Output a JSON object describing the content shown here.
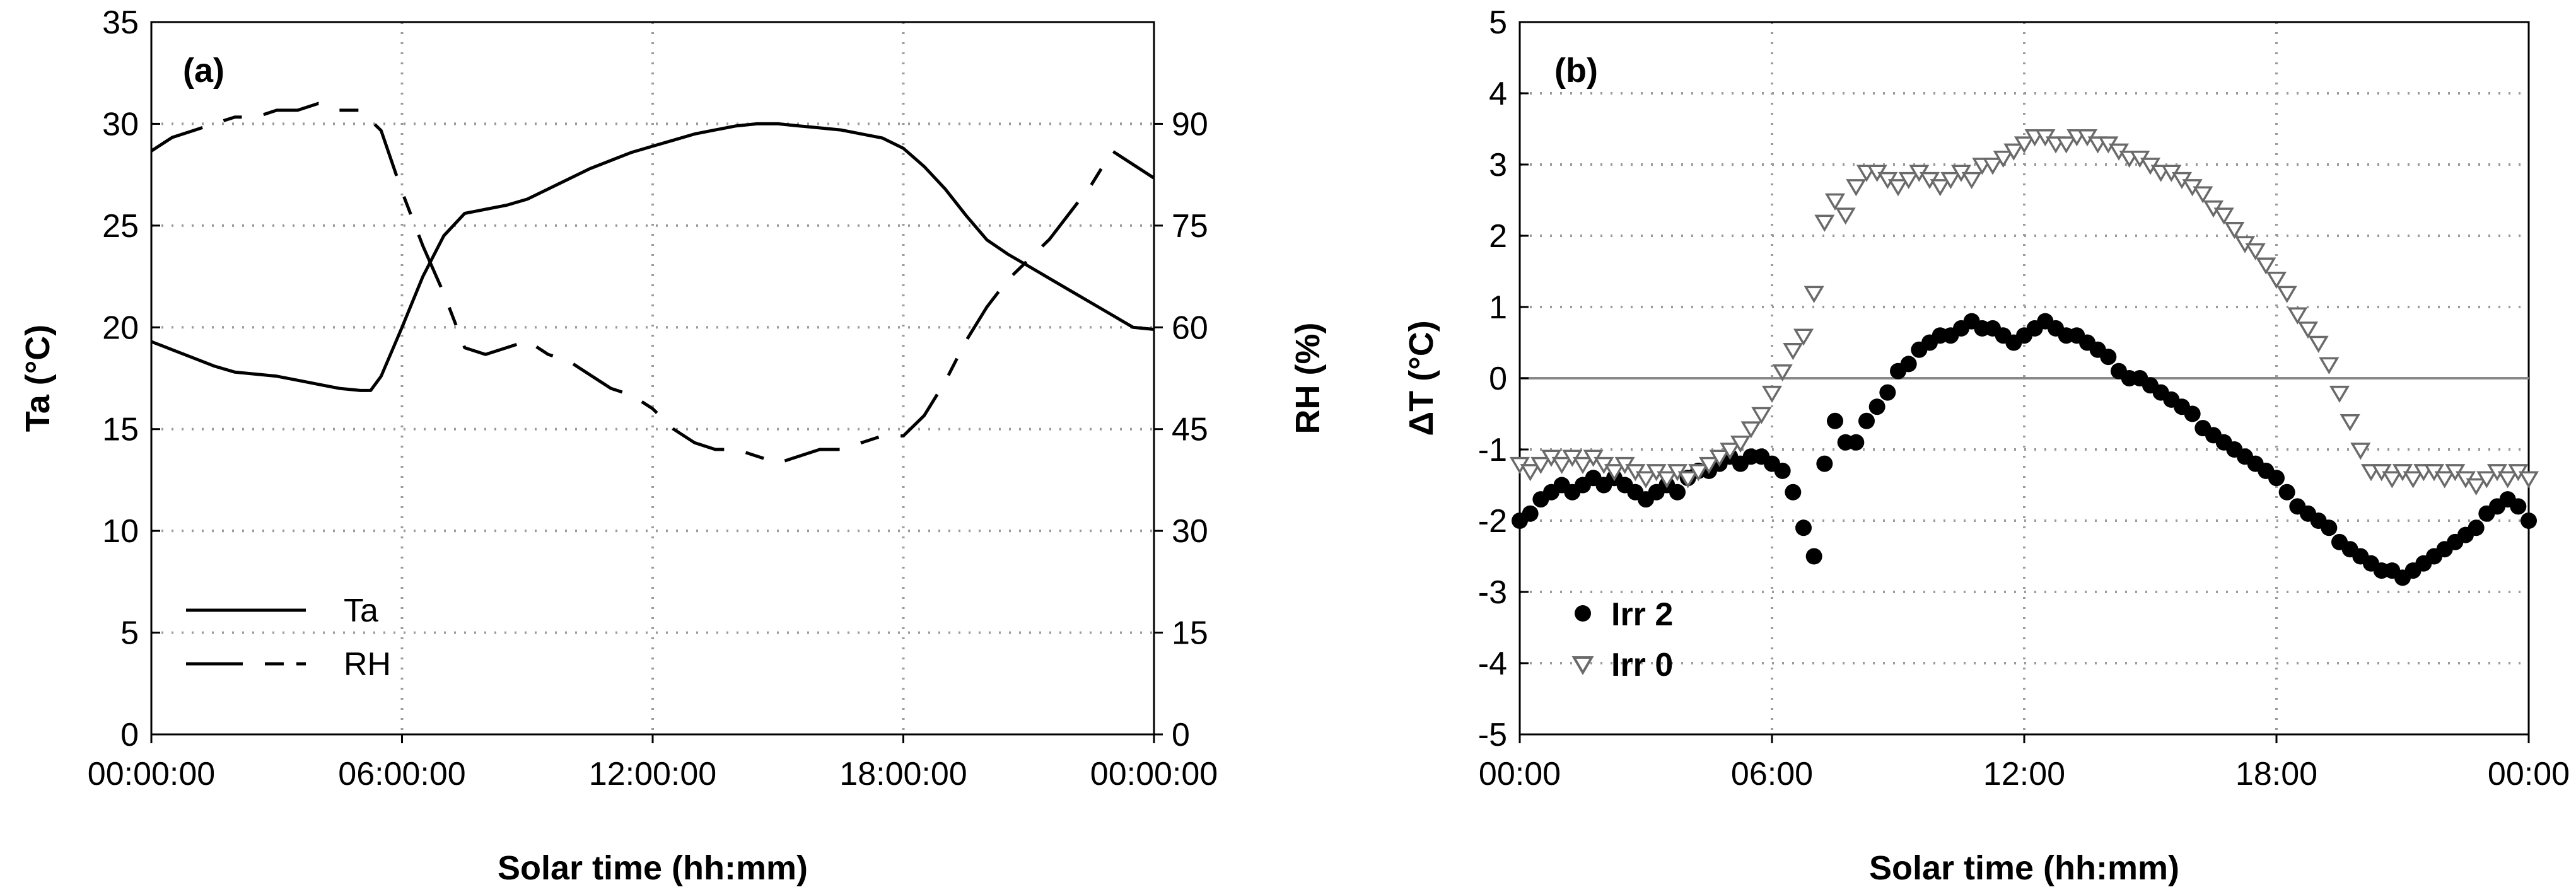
{
  "chart_data": [
    {
      "type": "line",
      "panel_label": "(a)",
      "xlabel": "Solar time (hh:mm)",
      "ylabel": "Ta (°C)",
      "ylabel_right": "RH (%)",
      "xlim": [
        0,
        24
      ],
      "ylim": [
        0,
        35
      ],
      "ylim_right": [
        0,
        105
      ],
      "x_ticks": [
        0,
        6,
        12,
        18,
        24
      ],
      "x_tick_labels": [
        "00:00:00",
        "06:00:00",
        "12:00:00",
        "18:00:00",
        "00:00:00"
      ],
      "y_ticks": [
        0,
        5,
        10,
        15,
        20,
        25,
        30,
        35
      ],
      "y_tick_labels": [
        "0",
        "5",
        "10",
        "15",
        "20",
        "25",
        "30",
        "35"
      ],
      "y_ticks_right": [
        0,
        15,
        30,
        45,
        60,
        75,
        90
      ],
      "y_tick_labels_right": [
        "0",
        "15",
        "30",
        "45",
        "60",
        "75",
        "90"
      ],
      "grid": true,
      "legend_position": "bottom-left",
      "series": [
        {
          "name": "Ta",
          "axis": "left",
          "style": "solid",
          "x": [
            0,
            0.5,
            1,
            1.5,
            2,
            2.5,
            3,
            3.5,
            4,
            4.5,
            5,
            5.25,
            5.5,
            6,
            6.5,
            7,
            7.5,
            8,
            8.5,
            9,
            9.5,
            10,
            10.5,
            11,
            11.5,
            12,
            12.5,
            13,
            13.5,
            14,
            14.5,
            15,
            15.5,
            16,
            16.5,
            17,
            17.5,
            18,
            18.5,
            19,
            19.5,
            20,
            20.5,
            21,
            21.5,
            22,
            22.5,
            23,
            23.5,
            24
          ],
          "values": [
            19.3,
            18.9,
            18.5,
            18.1,
            17.8,
            17.7,
            17.6,
            17.4,
            17.2,
            17.0,
            16.9,
            16.9,
            17.6,
            20.0,
            22.5,
            24.5,
            25.6,
            25.8,
            26.0,
            26.3,
            26.8,
            27.3,
            27.8,
            28.2,
            28.6,
            28.9,
            29.2,
            29.5,
            29.7,
            29.9,
            30.0,
            30.0,
            29.9,
            29.8,
            29.7,
            29.5,
            29.3,
            28.8,
            27.9,
            26.8,
            25.5,
            24.3,
            23.6,
            23.0,
            22.4,
            21.8,
            21.2,
            20.6,
            20.0,
            19.9
          ]
        },
        {
          "name": "RH",
          "axis": "right",
          "style": "dashed",
          "x": [
            0,
            0.5,
            1,
            1.5,
            2,
            2.5,
            3,
            3.5,
            4,
            4.5,
            5,
            5.5,
            6,
            6.5,
            7,
            7.5,
            8,
            8.5,
            9,
            9.5,
            10,
            10.5,
            11,
            11.5,
            12,
            12.5,
            13,
            13.5,
            14,
            14.5,
            15,
            15.5,
            16,
            16.5,
            17,
            17.5,
            18,
            18.5,
            19,
            19.5,
            20,
            20.5,
            21,
            21.5,
            22,
            22.5,
            23,
            23.5,
            24
          ],
          "values": [
            86,
            88,
            89,
            90,
            91,
            91,
            92,
            92,
            93,
            92,
            92,
            89,
            80,
            72,
            65,
            57,
            56,
            57,
            58,
            56,
            55,
            53,
            51,
            50,
            48,
            45,
            43,
            42,
            42,
            41,
            40,
            41,
            42,
            42,
            43,
            44,
            44,
            47,
            52,
            58,
            63,
            67,
            70,
            73,
            77,
            81,
            86,
            84,
            82
          ]
        }
      ]
    },
    {
      "type": "scatter",
      "panel_label": "(b)",
      "xlabel": "Solar time (hh:mm)",
      "ylabel": "ΔT (°C)",
      "xlim": [
        0,
        24
      ],
      "ylim": [
        -5,
        5
      ],
      "x_ticks": [
        0,
        6,
        12,
        18,
        24
      ],
      "x_tick_labels": [
        "00:00",
        "06:00",
        "12:00",
        "18:00",
        "00:00"
      ],
      "y_ticks": [
        -5,
        -4,
        -3,
        -2,
        -1,
        0,
        1,
        2,
        3,
        4,
        5
      ],
      "y_tick_labels": [
        "-5",
        "-4",
        "-3",
        "-2",
        "-1",
        "0",
        "1",
        "2",
        "3",
        "4",
        "5"
      ],
      "grid": true,
      "zero_line": true,
      "legend_position": "bottom-left",
      "series": [
        {
          "name": "Irr 2",
          "marker": "filled-circle",
          "x": [
            0,
            0.25,
            0.5,
            0.75,
            1,
            1.25,
            1.5,
            1.75,
            2,
            2.25,
            2.5,
            2.75,
            3,
            3.25,
            3.5,
            3.75,
            4,
            4.25,
            4.5,
            4.75,
            5,
            5.25,
            5.5,
            5.75,
            6,
            6.25,
            6.5,
            6.75,
            7,
            7.25,
            7.5,
            7.75,
            8,
            8.25,
            8.5,
            8.75,
            9,
            9.25,
            9.5,
            9.75,
            10,
            10.25,
            10.5,
            10.75,
            11,
            11.25,
            11.5,
            11.75,
            12,
            12.25,
            12.5,
            12.75,
            13,
            13.25,
            13.5,
            13.75,
            14,
            14.25,
            14.5,
            14.75,
            15,
            15.25,
            15.5,
            15.75,
            16,
            16.25,
            16.5,
            16.75,
            17,
            17.25,
            17.5,
            17.75,
            18,
            18.25,
            18.5,
            18.75,
            19,
            19.25,
            19.5,
            19.75,
            20,
            20.25,
            20.5,
            20.75,
            21,
            21.25,
            21.5,
            21.75,
            22,
            22.25,
            22.5,
            22.75,
            23,
            23.25,
            23.5,
            23.75,
            24
          ],
          "values": [
            -2.0,
            -1.9,
            -1.7,
            -1.6,
            -1.5,
            -1.6,
            -1.5,
            -1.4,
            -1.5,
            -1.4,
            -1.5,
            -1.6,
            -1.7,
            -1.6,
            -1.5,
            -1.6,
            -1.4,
            -1.3,
            -1.3,
            -1.2,
            -1.1,
            -1.2,
            -1.1,
            -1.1,
            -1.2,
            -1.3,
            -1.6,
            -2.1,
            -2.5,
            -1.2,
            -0.6,
            -0.9,
            -0.9,
            -0.6,
            -0.4,
            -0.2,
            0.1,
            0.2,
            0.4,
            0.5,
            0.6,
            0.6,
            0.7,
            0.8,
            0.7,
            0.7,
            0.6,
            0.5,
            0.6,
            0.7,
            0.8,
            0.7,
            0.6,
            0.6,
            0.5,
            0.4,
            0.3,
            0.1,
            0.0,
            0.0,
            -0.1,
            -0.2,
            -0.3,
            -0.4,
            -0.5,
            -0.7,
            -0.8,
            -0.9,
            -1.0,
            -1.1,
            -1.2,
            -1.3,
            -1.4,
            -1.6,
            -1.8,
            -1.9,
            -2.0,
            -2.1,
            -2.3,
            -2.4,
            -2.5,
            -2.6,
            -2.7,
            -2.7,
            -2.8,
            -2.7,
            -2.6,
            -2.5,
            -2.4,
            -2.3,
            -2.2,
            -2.1,
            -1.9,
            -1.8,
            -1.7,
            -1.8,
            -2.0
          ]
        },
        {
          "name": "Irr 0",
          "marker": "open-triangle-down",
          "x": [
            0,
            0.25,
            0.5,
            0.75,
            1,
            1.25,
            1.5,
            1.75,
            2,
            2.25,
            2.5,
            2.75,
            3,
            3.25,
            3.5,
            3.75,
            4,
            4.25,
            4.5,
            4.75,
            5,
            5.25,
            5.5,
            5.75,
            6,
            6.25,
            6.5,
            6.75,
            7,
            7.25,
            7.5,
            7.75,
            8,
            8.25,
            8.5,
            8.75,
            9,
            9.25,
            9.5,
            9.75,
            10,
            10.25,
            10.5,
            10.75,
            11,
            11.25,
            11.5,
            11.75,
            12,
            12.25,
            12.5,
            12.75,
            13,
            13.25,
            13.5,
            13.75,
            14,
            14.25,
            14.5,
            14.75,
            15,
            15.25,
            15.5,
            15.75,
            16,
            16.25,
            16.5,
            16.75,
            17,
            17.25,
            17.5,
            17.75,
            18,
            18.25,
            18.5,
            18.75,
            19,
            19.25,
            19.5,
            19.75,
            20,
            20.25,
            20.5,
            20.75,
            21,
            21.25,
            21.5,
            21.75,
            22,
            22.25,
            22.5,
            22.75,
            23,
            23.25,
            23.5,
            23.75,
            24
          ],
          "values": [
            -1.2,
            -1.3,
            -1.2,
            -1.1,
            -1.2,
            -1.1,
            -1.2,
            -1.1,
            -1.2,
            -1.3,
            -1.2,
            -1.3,
            -1.4,
            -1.3,
            -1.4,
            -1.3,
            -1.4,
            -1.3,
            -1.2,
            -1.1,
            -1.0,
            -0.9,
            -0.7,
            -0.5,
            -0.2,
            0.1,
            0.4,
            0.6,
            1.2,
            2.2,
            2.5,
            2.3,
            2.7,
            2.9,
            2.9,
            2.8,
            2.7,
            2.8,
            2.9,
            2.8,
            2.7,
            2.8,
            2.9,
            2.8,
            3.0,
            3.0,
            3.1,
            3.2,
            3.3,
            3.4,
            3.4,
            3.3,
            3.3,
            3.4,
            3.4,
            3.3,
            3.3,
            3.2,
            3.1,
            3.1,
            3.0,
            2.9,
            2.9,
            2.8,
            2.7,
            2.6,
            2.4,
            2.3,
            2.1,
            1.9,
            1.8,
            1.6,
            1.4,
            1.2,
            0.9,
            0.7,
            0.5,
            0.2,
            -0.2,
            -0.6,
            -1.0,
            -1.3,
            -1.3,
            -1.4,
            -1.3,
            -1.4,
            -1.3,
            -1.3,
            -1.4,
            -1.3,
            -1.4,
            -1.5,
            -1.4,
            -1.3,
            -1.4,
            -1.3,
            -1.4
          ]
        }
      ]
    }
  ]
}
